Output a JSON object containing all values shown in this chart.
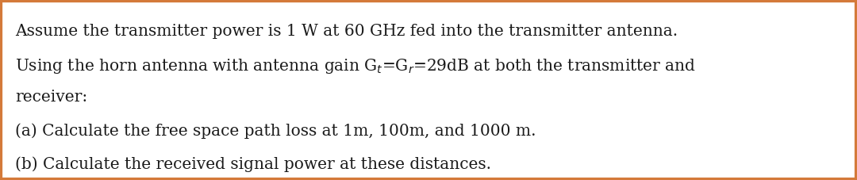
{
  "background_color": "#ffffff",
  "border_color": "#d47a3a",
  "border_linewidth": 4.5,
  "text_color": "#1a1a1a",
  "font_size": 14.5,
  "font_family": "serif",
  "line1": "Assume the transmitter power is 1 W at 60 GHz fed into the transmitter antenna.",
  "line2": "Using the horn antenna with antenna gain G$_t$=G$_r$=29dB at both the transmitter and",
  "line3": "receiver:",
  "line4": "(a) Calculate the free space path loss at 1m, 100m, and 1000 m.",
  "line5": "(b) Calculate the received signal power at these distances.",
  "fig_width": 10.8,
  "fig_height": 2.27,
  "dpi": 100
}
